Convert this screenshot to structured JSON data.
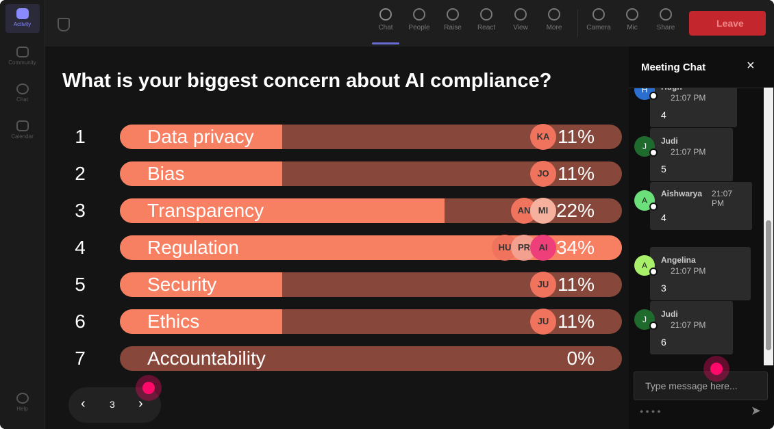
{
  "sidebar": {
    "items": [
      "Activity",
      "Community",
      "Chat",
      "Calendar"
    ],
    "help": "Help"
  },
  "toolbar": {
    "buttons": [
      "Chat",
      "People",
      "Raise",
      "React",
      "View",
      "More",
      "Camera",
      "Mic",
      "Share"
    ],
    "leave": "Leave"
  },
  "poll": {
    "question": "What is your biggest concern about AI compliance?",
    "options": [
      {
        "number": 1,
        "label": "Data privacy",
        "percent": 11,
        "percent_label": "11%",
        "voters": [
          "KA"
        ]
      },
      {
        "number": 2,
        "label": "Bias",
        "percent": 11,
        "percent_label": "11%",
        "voters": [
          "JO"
        ]
      },
      {
        "number": 3,
        "label": "Transparency",
        "percent": 22,
        "percent_label": "22%",
        "voters": [
          "AN",
          "MI"
        ]
      },
      {
        "number": 4,
        "label": "Regulation",
        "percent": 34,
        "percent_label": "34%",
        "voters": [
          "HU",
          "PR",
          "AI"
        ]
      },
      {
        "number": 5,
        "label": "Security",
        "percent": 11,
        "percent_label": "11%",
        "voters": [
          "JU"
        ]
      },
      {
        "number": 6,
        "label": "Ethics",
        "percent": 11,
        "percent_label": "11%",
        "voters": [
          "JU"
        ]
      },
      {
        "number": 7,
        "label": "Accountability",
        "percent": 0,
        "percent_label": "0%",
        "voters": []
      }
    ]
  },
  "pager": {
    "page": 3
  },
  "chat": {
    "title": "Meeting Chat",
    "messages": [
      {
        "initial": "H",
        "author": "Hugh",
        "time": "21:07 PM",
        "text": "4"
      },
      {
        "initial": "J",
        "author": "Judi",
        "time": "21:07 PM",
        "text": "5"
      },
      {
        "initial": "A",
        "author": "Aishwarya",
        "time": "21:07 PM",
        "text": "4"
      },
      {
        "initial": "A",
        "author": "Angelina",
        "time": "21:07 PM",
        "text": "3"
      },
      {
        "initial": "J",
        "author": "Judi",
        "time": "21:07 PM",
        "text": "6"
      }
    ],
    "input_placeholder": "Type message here..."
  }
}
